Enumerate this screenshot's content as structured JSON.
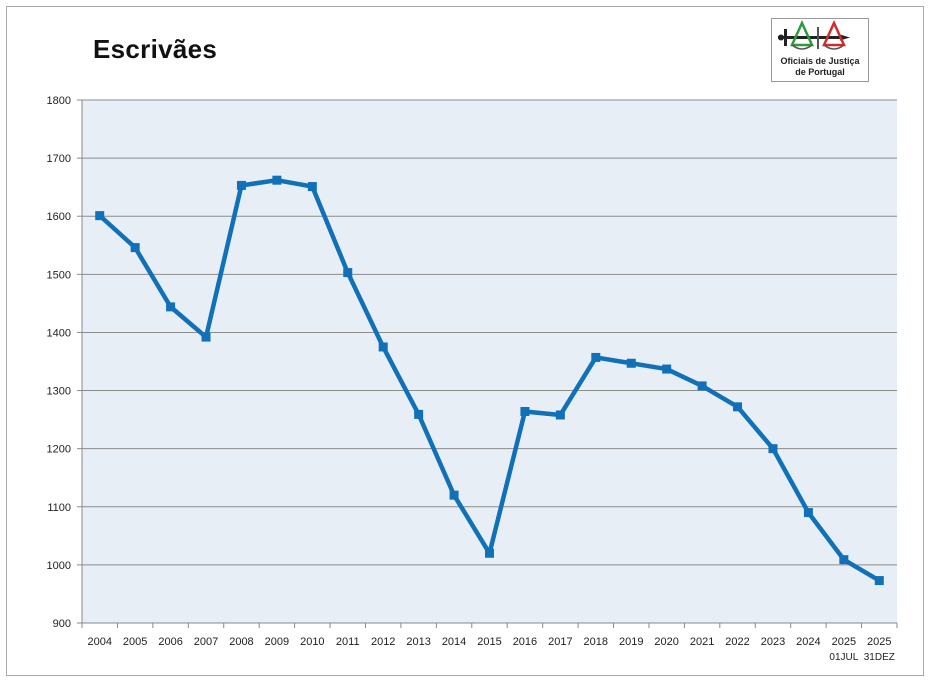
{
  "chart_data": {
    "type": "line",
    "title": "Escrivães",
    "xlabel": "",
    "ylabel": "",
    "ylim": [
      900,
      1800
    ],
    "yticks": [
      900,
      1000,
      1100,
      1200,
      1300,
      1400,
      1500,
      1600,
      1700,
      1800
    ],
    "categories": [
      "2004",
      "2005",
      "2006",
      "2007",
      "2008",
      "2009",
      "2010",
      "2011",
      "2012",
      "2013",
      "2014",
      "2015",
      "2016",
      "2017",
      "2018",
      "2019",
      "2020",
      "2021",
      "2022",
      "2023",
      "2024",
      "2025",
      "2025"
    ],
    "category_sublabels": [
      "",
      "",
      "",
      "",
      "",
      "",
      "",
      "",
      "",
      "",
      "",
      "",
      "",
      "",
      "",
      "",
      "",
      "",
      "",
      "",
      "",
      "01JUL",
      "31DEZ"
    ],
    "series": [
      {
        "values": [
          1601,
          1546,
          1444,
          1392,
          1653,
          1662,
          1651,
          1503,
          1375,
          1259,
          1120,
          1020,
          1264,
          1258,
          1357,
          1347,
          1337,
          1308,
          1272,
          1200,
          1090,
          1009,
          973
        ]
      }
    ],
    "colors": {
      "line": "#1070b8",
      "plot_background": "#e8eef6",
      "gridline": "#8c8c8c"
    },
    "grid": true,
    "legend": "none"
  },
  "logo": {
    "line1": "Oficiais de Justiça",
    "line2": "de Portugal",
    "icon": "scales-and-sword-logo"
  }
}
